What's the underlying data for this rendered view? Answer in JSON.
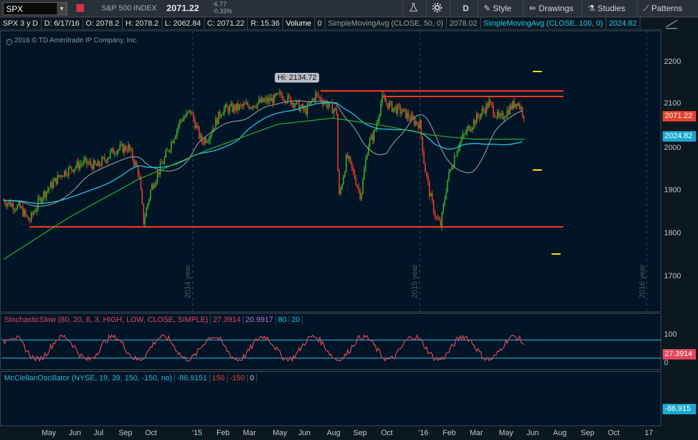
{
  "toolbar": {
    "symbol": "SPX",
    "index_name": "S&P 500 INDEX",
    "last_price": "2071.22",
    "change": "-6.77",
    "change_pct": "-0.33%",
    "aggregation": "D",
    "style_label": "Style",
    "drawings_label": "Drawings",
    "studies_label": "Studies",
    "patterns_label": "Patterns"
  },
  "infobar": {
    "symbol_period": "SPX 3 y D",
    "date": "D: 6/17/16",
    "open": "O: 2078.2",
    "high": "H: 2078.2",
    "low": "L: 2062.84",
    "close": "C: 2071.22",
    "range": "R: 15.36",
    "volume_label": "Volume",
    "volume_value": "0",
    "sma50_label": "SimpleMovingAvg (CLOSE, 50, 0)",
    "sma50_value": "2078.02",
    "sma100_label": "SimpleMovingAvg (CLOSE, 100, 0)",
    "sma100_value": "2024.82"
  },
  "chart": {
    "copyright": "2016 © TD Ameritrade IP Company, Inc.",
    "hi_label": "Hi: 2134.72",
    "price_axis": [
      "2200",
      "2100",
      "2000",
      "1900",
      "1800",
      "1700"
    ],
    "price_tag_last": "2071.22",
    "price_tag_sma": "2024.82",
    "year_labels": [
      "2014 year",
      "2015 year",
      "2016 year"
    ]
  },
  "stochastic": {
    "label": "StochasticSlow (80, 20, 8, 3, HIGH, LOW, CLOSE, SIMPLE)",
    "k_value": "27.3914",
    "d_value": "20.9917",
    "overbought": "80",
    "oversold": "20",
    "axis": [
      "100",
      "0"
    ],
    "tag": "27.3914"
  },
  "mcclellan": {
    "label": "McClellanOscillator (NYSE, 19, 39, 150, -150, no)",
    "value": "-86.9151",
    "upper": "150",
    "lower": "-150",
    "zero": "0",
    "tag": "-86.915"
  },
  "xaxis": [
    "May",
    "Jun",
    "Jul",
    "Sep",
    "Oct",
    "'15",
    "Feb",
    "Mar",
    "May",
    "Jun",
    "Aug",
    "Sep",
    "Oct",
    "'16",
    "Feb",
    "Mar",
    "May",
    "Jun",
    "Aug",
    "Sep",
    "Oct",
    "17"
  ],
  "colors": {
    "up": "#3fae2a",
    "down": "#e8402a",
    "sma50": "#8a8a8a",
    "sma100": "#22c8e8",
    "sma200": "#30b030",
    "level_line": "#ff3b1f",
    "stoch": "#e0465a",
    "mcclellan": "#30b8d8"
  },
  "chart_data": {
    "type": "candlestick",
    "title": "SPX 3 y D",
    "ylim": [
      1650,
      2250
    ],
    "levels": [
      2134,
      2121,
      1812
    ],
    "key_points": [
      {
        "x": "2014-04",
        "y": 1870
      },
      {
        "x": "2014-07",
        "y": 1980
      },
      {
        "x": "2014-10",
        "y": 1820
      },
      {
        "x": "2014-12",
        "y": 2080
      },
      {
        "x": "2015-05",
        "y": 2134
      },
      {
        "x": "2015-08",
        "y": 1867
      },
      {
        "x": "2015-11",
        "y": 2110
      },
      {
        "x": "2016-02",
        "y": 1810
      },
      {
        "x": "2016-04",
        "y": 2100
      },
      {
        "x": "2016-06",
        "y": 2071
      }
    ]
  }
}
